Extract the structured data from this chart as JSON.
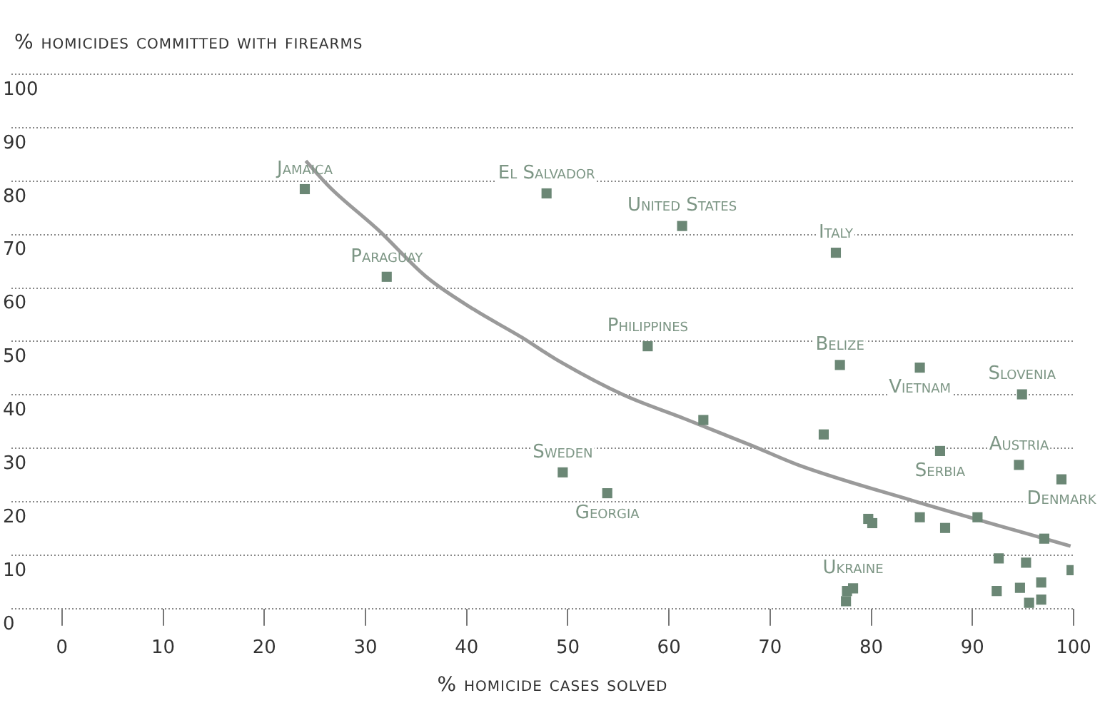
{
  "chart_data": {
    "type": "scatter",
    "ylabel": "% homicides committed with firearms",
    "xlabel": "% homicide cases solved",
    "xlim": [
      -5,
      100
    ],
    "xticks": [
      0,
      10,
      20,
      30,
      40,
      50,
      60,
      70,
      80,
      90,
      100
    ],
    "ylim": [
      0,
      100
    ],
    "yticks": [
      0,
      10,
      20,
      30,
      40,
      50,
      60,
      70,
      80,
      90,
      100
    ],
    "grid": "y",
    "legend": false,
    "series": [
      {
        "type": "scatter",
        "marker": "square",
        "color": "#6b8775",
        "x": [
          24.0,
          47.9,
          61.3,
          76.5,
          32.1,
          57.9,
          76.9,
          84.8,
          94.9,
          63.4,
          75.3,
          86.8,
          94.6,
          98.8,
          49.5,
          53.9,
          79.7,
          80.1,
          84.8,
          87.3,
          90.5,
          97.1,
          92.6,
          95.3,
          99.8,
          96.8,
          92.4,
          94.7,
          95.6,
          96.8,
          78.2,
          77.6,
          77.5
        ],
        "values": [
          78.5,
          77.7,
          71.6,
          66.6,
          62.1,
          49.1,
          45.6,
          45.1,
          40.1,
          35.3,
          32.6,
          29.5,
          26.9,
          24.2,
          25.5,
          21.6,
          16.8,
          16.0,
          17.1,
          15.1,
          17.1,
          13.1,
          9.4,
          8.6,
          7.2,
          4.9,
          3.3,
          3.9,
          1.1,
          1.7,
          3.8,
          3.3,
          1.4
        ]
      },
      {
        "type": "line",
        "marker": "none",
        "color": "#9a9a9a",
        "x": [
          24.1,
          26.5,
          31.3,
          36.0,
          40.7,
          45.5,
          48.8,
          55.5,
          61.6,
          68.2,
          72.9,
          84.3,
          99.7
        ],
        "values": [
          83.8,
          78.8,
          70.8,
          62.1,
          56.0,
          50.7,
          46.7,
          40.0,
          35.5,
          30.5,
          26.8,
          20.1,
          11.7
        ]
      }
    ],
    "annotations": [
      {
        "text": "Jamaica",
        "x": 24.0,
        "y": 78.5
      },
      {
        "text": "El Salvador",
        "x": 47.9,
        "y": 77.7
      },
      {
        "text": "United States",
        "x": 61.3,
        "y": 71.6
      },
      {
        "text": "Italy",
        "x": 76.5,
        "y": 66.6
      },
      {
        "text": "Paraguay",
        "x": 32.1,
        "y": 62.1
      },
      {
        "text": "Philippines",
        "x": 57.9,
        "y": 49.1
      },
      {
        "text": "Belize",
        "x": 76.9,
        "y": 45.6
      },
      {
        "text": "Vietnam",
        "x": 84.8,
        "y": 45.1
      },
      {
        "text": "Slovenia",
        "x": 94.9,
        "y": 40.1
      },
      {
        "text": "Sweden",
        "x": 49.5,
        "y": 25.5
      },
      {
        "text": "Georgia",
        "x": 53.9,
        "y": 21.6
      },
      {
        "text": "Ukraine",
        "x": 78.2,
        "y": 3.8
      },
      {
        "text": "Serbia",
        "x": 86.8,
        "y": 29.5
      },
      {
        "text": "Austria",
        "x": 94.6,
        "y": 26.9
      },
      {
        "text": "Denmark",
        "x": 98.8,
        "y": 24.2
      }
    ]
  }
}
